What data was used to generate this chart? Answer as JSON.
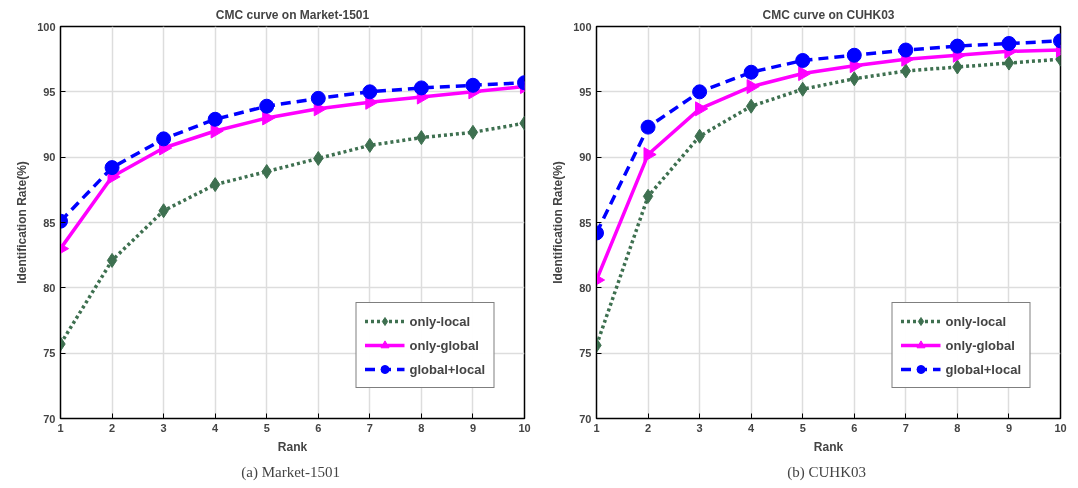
{
  "chart_data": [
    {
      "type": "line",
      "title": "CMC curve on Market-1501",
      "xlabel": "Rank",
      "ylabel": "Identification Rate(%)",
      "annotations": [
        "(a)  Market-1501"
      ],
      "x": [
        1,
        2,
        3,
        4,
        5,
        6,
        7,
        8,
        9,
        10
      ],
      "xlim": [
        1,
        10
      ],
      "xticks": [
        1,
        2,
        3,
        4,
        5,
        6,
        7,
        8,
        9,
        10
      ],
      "ylim": [
        70,
        100
      ],
      "yticks": [
        70,
        75,
        80,
        85,
        90,
        95,
        100
      ],
      "grid": true,
      "legend": "bottom right",
      "series": [
        {
          "name": "only-local",
          "color": "#3e7050",
          "marker": "diamond",
          "line_style": "dotted",
          "values": [
            75.7,
            82.1,
            85.9,
            87.9,
            88.9,
            89.9,
            90.9,
            91.5,
            91.9,
            92.6
          ]
        },
        {
          "name": "only-global",
          "color": "#ff00ff",
          "marker": "triangle",
          "line_style": "solid",
          "values": [
            83.0,
            88.5,
            90.7,
            92.0,
            93.0,
            93.7,
            94.2,
            94.6,
            95.0,
            95.4
          ]
        },
        {
          "name": "global+local",
          "color": "#0000ff",
          "marker": "circle",
          "line_style": "dashed",
          "values": [
            85.1,
            89.2,
            91.4,
            92.9,
            93.9,
            94.5,
            95.0,
            95.3,
            95.5,
            95.7
          ]
        }
      ]
    },
    {
      "type": "line",
      "title": "CMC curve on CUHK03",
      "xlabel": "Rank",
      "ylabel": "Identification Rate(%)",
      "annotations": [
        "(b)  CUHK03"
      ],
      "x": [
        1,
        2,
        3,
        4,
        5,
        6,
        7,
        8,
        9,
        10
      ],
      "xlim": [
        1,
        10
      ],
      "xticks": [
        1,
        2,
        3,
        4,
        5,
        6,
        7,
        8,
        9,
        10
      ],
      "ylim": [
        70,
        100
      ],
      "yticks": [
        70,
        75,
        80,
        85,
        90,
        95,
        100
      ],
      "grid": true,
      "legend": "bottom right",
      "series": [
        {
          "name": "only-local",
          "color": "#3e7050",
          "marker": "diamond",
          "line_style": "dotted",
          "values": [
            75.6,
            87.0,
            91.6,
            93.9,
            95.2,
            96.0,
            96.6,
            96.9,
            97.2,
            97.5
          ]
        },
        {
          "name": "only-global",
          "color": "#ff00ff",
          "marker": "triangle",
          "line_style": "solid",
          "values": [
            80.6,
            90.2,
            93.7,
            95.4,
            96.4,
            97.0,
            97.5,
            97.8,
            98.1,
            98.2
          ]
        },
        {
          "name": "global+local",
          "color": "#0000ff",
          "marker": "circle",
          "line_style": "dashed",
          "values": [
            84.2,
            92.3,
            95.0,
            96.5,
            97.4,
            97.8,
            98.2,
            98.5,
            98.7,
            98.9
          ]
        }
      ]
    }
  ]
}
